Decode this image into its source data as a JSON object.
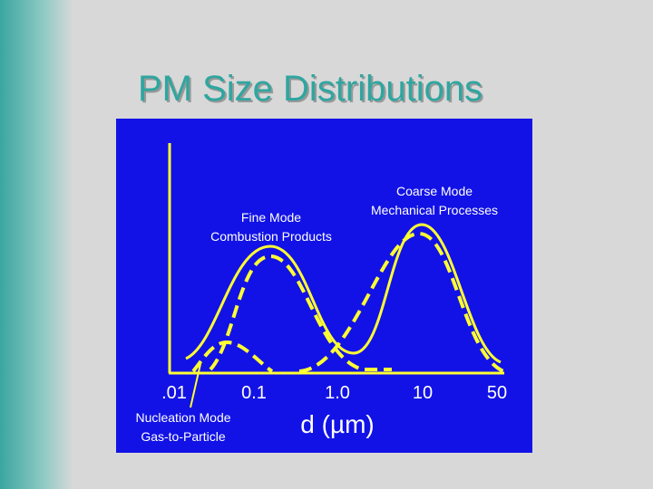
{
  "title": "PM Size Distributions",
  "axis": {
    "ticks": [
      ".01",
      "0.1",
      "1.0",
      "10",
      "50"
    ],
    "label": "d (µm)"
  },
  "annotations": {
    "fine": [
      "Fine Mode",
      "Combustion Products"
    ],
    "coarse": [
      "Coarse Mode",
      "Mechanical Processes"
    ],
    "nucleation": [
      "Nucleation Mode",
      "Gas-to-Particle"
    ]
  }
}
